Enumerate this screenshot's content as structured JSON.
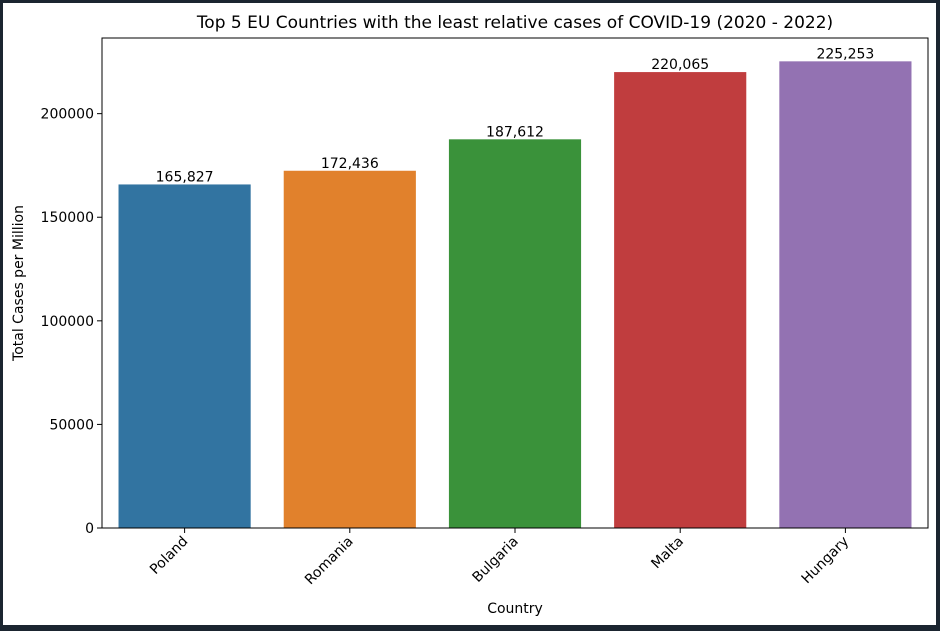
{
  "chart_data": {
    "type": "bar",
    "title": "Top 5  EU Countries with the least relative cases of COVID-19  (2020 - 2022)",
    "xlabel": "Country",
    "ylabel": "Total Cases per Million",
    "categories": [
      "Poland",
      "Romania",
      "Bulgaria",
      "Malta",
      "Hungary"
    ],
    "values": [
      165827,
      172436,
      187612,
      220065,
      225253
    ],
    "value_labels": [
      "165,827",
      "172,436",
      "187,612",
      "220,065",
      "225,253"
    ],
    "colors": [
      "#3274a1",
      "#e1812c",
      "#3a923a",
      "#c03d3e",
      "#9372b2"
    ],
    "yticks": [
      0,
      50000,
      100000,
      150000,
      200000
    ],
    "ytick_labels": [
      "0",
      "50000",
      "100000",
      "150000",
      "200000"
    ],
    "ylim": [
      0,
      236516
    ],
    "grid": false,
    "legend": "none"
  }
}
